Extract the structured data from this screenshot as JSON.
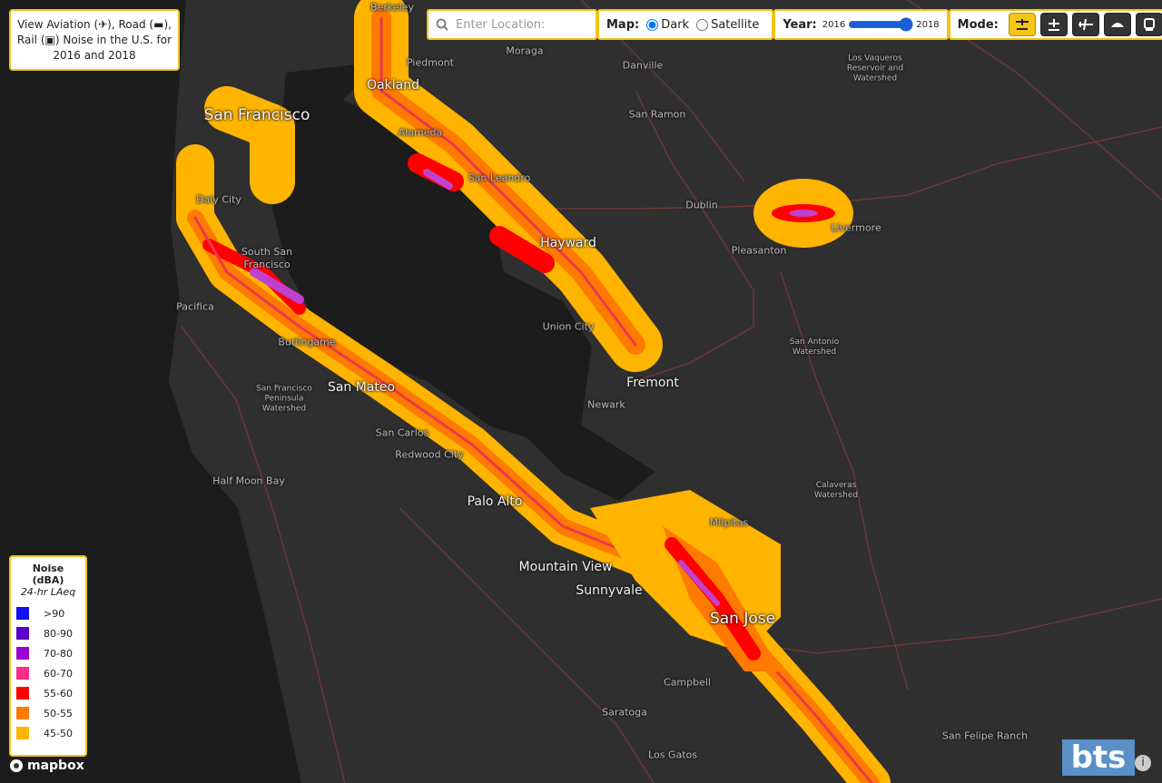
{
  "info": {
    "text": "View Aviation (✈), Road (▬), Rail (▣) Noise in the U.S. for 2016 and 2018"
  },
  "search": {
    "placeholder": "Enter Location:"
  },
  "map_style": {
    "label": "Map:",
    "options": [
      "Dark",
      "Satellite"
    ],
    "selected": 0
  },
  "year": {
    "label": "Year:",
    "min": 2016,
    "max": 2018,
    "value": 2018
  },
  "mode": {
    "label": "Mode:",
    "selected": 0
  },
  "legend": {
    "title": "Noise (dBA)",
    "subtitle": "24-hr LAeq",
    "items": [
      {
        "label": ">90",
        "color": "#1010f0"
      },
      {
        "label": "80-90",
        "color": "#5a00c8"
      },
      {
        "label": "70-80",
        "color": "#9b00d0"
      },
      {
        "label": "60-70",
        "color": "#ff2a8a"
      },
      {
        "label": "55-60",
        "color": "#ff0000"
      },
      {
        "label": "50-55",
        "color": "#ff7a00"
      },
      {
        "label": "45-50",
        "color": "#ffb400"
      }
    ]
  },
  "places": [
    "Berkeley",
    "Piedmont",
    "Moraga",
    "Danville",
    "Oakland",
    "San Francisco",
    "Alameda",
    "San Ramon",
    "Los Vaqueros Reservoir and Watershed",
    "San Leandro",
    "Dublin",
    "Livermore",
    "Daly City",
    "South San Francisco",
    "Hayward",
    "Pleasanton",
    "Pacifica",
    "Union City",
    "Burlingame",
    "San Antonio Watershed",
    "Fremont",
    "San Mateo",
    "San Francisco Peninsula Watershed",
    "Newark",
    "San Carlos",
    "Redwood City",
    "Half Moon Bay",
    "Calaveras Watershed",
    "Palo Alto",
    "Milpitas",
    "Mountain View",
    "Sunnyvale",
    "San Jose",
    "Campbell",
    "Saratoga",
    "San Felipe Ranch",
    "Los Gatos"
  ],
  "attribution": "mapbox",
  "logo": "bts"
}
